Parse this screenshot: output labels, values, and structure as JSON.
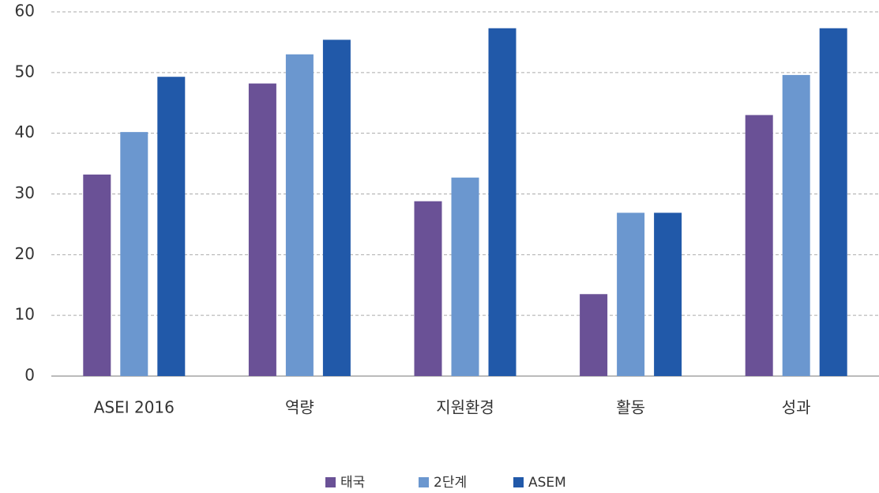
{
  "chart_data": {
    "type": "bar",
    "categories": [
      "ASEI 2016",
      "역량",
      "지원환경",
      "활동",
      "성과"
    ],
    "series": [
      {
        "name": "태국",
        "color": "#6a5196",
        "values": [
          33.2,
          48.2,
          28.8,
          13.5,
          43.0
        ]
      },
      {
        "name": "2단계",
        "color": "#6b97cf",
        "values": [
          40.2,
          53.0,
          32.7,
          26.9,
          49.6
        ]
      },
      {
        "name": "ASEM",
        "color": "#2159a9",
        "values": [
          49.3,
          55.4,
          57.3,
          26.9,
          57.3
        ]
      }
    ],
    "ylim": [
      0,
      60
    ],
    "yticks": [
      0,
      10,
      20,
      30,
      40,
      50,
      60
    ],
    "grid": true,
    "legend": "bottom"
  }
}
